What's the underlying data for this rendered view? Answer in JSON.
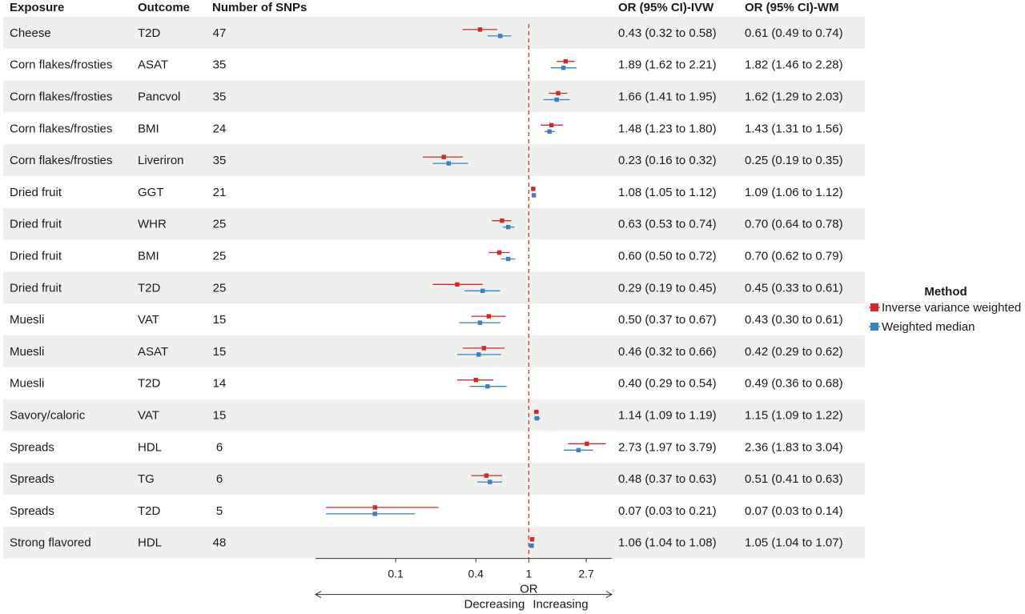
{
  "chart_data": {
    "type": "forest",
    "x_scale": "log",
    "xlim": [
      0.025,
      4.2
    ],
    "reference_line": 1,
    "x_ticks": [
      0.1,
      0.4,
      1,
      2.7
    ],
    "x_tick_labels": [
      "0.1",
      "0.4",
      "1",
      "2.7"
    ],
    "xlabel": "OR",
    "direction_left": "Decreasing",
    "direction_right": "Increasing",
    "columns": {
      "exposure": "Exposure",
      "outcome": "Outcome",
      "snps": "Number of SNPs",
      "ivw": "OR (95% CI)-IVW",
      "wm": "OR (95% CI)-WM"
    },
    "legend": {
      "title": "Method",
      "items": [
        {
          "name": "Inverse variance weighted",
          "color": "#d62728"
        },
        {
          "name": "Weighted median",
          "color": "#3a7fc1"
        }
      ]
    },
    "rows": [
      {
        "exposure": "Cheese",
        "outcome": "T2D",
        "snps": "47",
        "ivw": {
          "or": 0.43,
          "lo": 0.32,
          "hi": 0.58,
          "label": "0.43 (0.32 to 0.58)"
        },
        "wm": {
          "or": 0.61,
          "lo": 0.49,
          "hi": 0.74,
          "label": "0.61 (0.49 to 0.74)"
        }
      },
      {
        "exposure": "Corn flakes/frosties",
        "outcome": "ASAT",
        "snps": "35",
        "ivw": {
          "or": 1.89,
          "lo": 1.62,
          "hi": 2.21,
          "label": "1.89 (1.62 to 2.21)"
        },
        "wm": {
          "or": 1.82,
          "lo": 1.46,
          "hi": 2.28,
          "label": "1.82 (1.46 to 2.28)"
        }
      },
      {
        "exposure": "Corn flakes/frosties",
        "outcome": "Pancvol",
        "snps": "35",
        "ivw": {
          "or": 1.66,
          "lo": 1.41,
          "hi": 1.95,
          "label": "1.66 (1.41 to 1.95)"
        },
        "wm": {
          "or": 1.62,
          "lo": 1.29,
          "hi": 2.03,
          "label": "1.62 (1.29 to 2.03)"
        }
      },
      {
        "exposure": "Corn flakes/frosties",
        "outcome": "BMI",
        "snps": "24",
        "ivw": {
          "or": 1.48,
          "lo": 1.23,
          "hi": 1.8,
          "label": "1.48 (1.23 to 1.80)"
        },
        "wm": {
          "or": 1.43,
          "lo": 1.31,
          "hi": 1.56,
          "label": "1.43 (1.31 to 1.56)"
        }
      },
      {
        "exposure": "Corn flakes/frosties",
        "outcome": "Liveriron",
        "snps": "35",
        "ivw": {
          "or": 0.23,
          "lo": 0.16,
          "hi": 0.32,
          "label": "0.23 (0.16 to 0.32)"
        },
        "wm": {
          "or": 0.25,
          "lo": 0.19,
          "hi": 0.35,
          "label": "0.25 (0.19 to 0.35)"
        }
      },
      {
        "exposure": "Dried fruit",
        "outcome": "GGT",
        "snps": "21",
        "ivw": {
          "or": 1.08,
          "lo": 1.05,
          "hi": 1.12,
          "label": "1.08 (1.05 to 1.12)"
        },
        "wm": {
          "or": 1.09,
          "lo": 1.06,
          "hi": 1.12,
          "label": "1.09 (1.06 to 1.12)"
        }
      },
      {
        "exposure": "Dried fruit",
        "outcome": "WHR",
        "snps": "25",
        "ivw": {
          "or": 0.63,
          "lo": 0.53,
          "hi": 0.74,
          "label": "0.63 (0.53 to 0.74)"
        },
        "wm": {
          "or": 0.7,
          "lo": 0.64,
          "hi": 0.78,
          "label": "0.70 (0.64 to 0.78)"
        }
      },
      {
        "exposure": "Dried fruit",
        "outcome": "BMI",
        "snps": "25",
        "ivw": {
          "or": 0.6,
          "lo": 0.5,
          "hi": 0.72,
          "label": "0.60 (0.50 to 0.72)"
        },
        "wm": {
          "or": 0.7,
          "lo": 0.62,
          "hi": 0.79,
          "label": "0.70 (0.62 to 0.79)"
        }
      },
      {
        "exposure": "Dried fruit",
        "outcome": "T2D",
        "snps": "25",
        "ivw": {
          "or": 0.29,
          "lo": 0.19,
          "hi": 0.45,
          "label": "0.29 (0.19 to 0.45)"
        },
        "wm": {
          "or": 0.45,
          "lo": 0.33,
          "hi": 0.61,
          "label": "0.45 (0.33 to 0.61)"
        }
      },
      {
        "exposure": "Muesli",
        "outcome": "VAT",
        "snps": "15",
        "ivw": {
          "or": 0.5,
          "lo": 0.37,
          "hi": 0.67,
          "label": "0.50 (0.37 to 0.67)"
        },
        "wm": {
          "or": 0.43,
          "lo": 0.3,
          "hi": 0.61,
          "label": "0.43 (0.30 to 0.61)"
        }
      },
      {
        "exposure": "Muesli",
        "outcome": "ASAT",
        "snps": "15",
        "ivw": {
          "or": 0.46,
          "lo": 0.32,
          "hi": 0.66,
          "label": "0.46 (0.32 to 0.66)"
        },
        "wm": {
          "or": 0.42,
          "lo": 0.29,
          "hi": 0.62,
          "label": "0.42 (0.29 to 0.62)"
        }
      },
      {
        "exposure": "Muesli",
        "outcome": "T2D",
        "snps": "14",
        "ivw": {
          "or": 0.4,
          "lo": 0.29,
          "hi": 0.54,
          "label": "0.40 (0.29 to 0.54)"
        },
        "wm": {
          "or": 0.49,
          "lo": 0.36,
          "hi": 0.68,
          "label": "0.49 (0.36 to 0.68)"
        }
      },
      {
        "exposure": "Savory/caloric",
        "outcome": "VAT",
        "snps": "15",
        "ivw": {
          "or": 1.14,
          "lo": 1.09,
          "hi": 1.19,
          "label": "1.14 (1.09 to 1.19)"
        },
        "wm": {
          "or": 1.15,
          "lo": 1.09,
          "hi": 1.22,
          "label": "1.15 (1.09 to 1.22)"
        }
      },
      {
        "exposure": "Spreads",
        "outcome": "HDL",
        "snps": "6",
        "ivw": {
          "or": 2.73,
          "lo": 1.97,
          "hi": 3.79,
          "label": "2.73 (1.97 to 3.79)"
        },
        "wm": {
          "or": 2.36,
          "lo": 1.83,
          "hi": 3.04,
          "label": "2.36 (1.83 to 3.04)"
        }
      },
      {
        "exposure": "Spreads",
        "outcome": "TG",
        "snps": "6",
        "ivw": {
          "or": 0.48,
          "lo": 0.37,
          "hi": 0.63,
          "label": "0.48 (0.37 to 0.63)"
        },
        "wm": {
          "or": 0.51,
          "lo": 0.41,
          "hi": 0.63,
          "label": "0.51 (0.41 to 0.63)"
        }
      },
      {
        "exposure": "Spreads",
        "outcome": "T2D",
        "snps": "5",
        "ivw": {
          "or": 0.07,
          "lo": 0.03,
          "hi": 0.21,
          "label": "0.07 (0.03 to 0.21)"
        },
        "wm": {
          "or": 0.07,
          "lo": 0.03,
          "hi": 0.14,
          "label": "0.07 (0.03 to 0.14)"
        }
      },
      {
        "exposure": "Strong flavored",
        "outcome": "HDL",
        "snps": "48",
        "ivw": {
          "or": 1.06,
          "lo": 1.04,
          "hi": 1.08,
          "label": "1.06 (1.04 to 1.08)"
        },
        "wm": {
          "or": 1.05,
          "lo": 1.04,
          "hi": 1.07,
          "label": "1.05 (1.04 to 1.07)"
        }
      }
    ],
    "colors": {
      "row_band": "#eef0ee",
      "ref_line": "#e0372b",
      "axis": "#333333"
    }
  }
}
